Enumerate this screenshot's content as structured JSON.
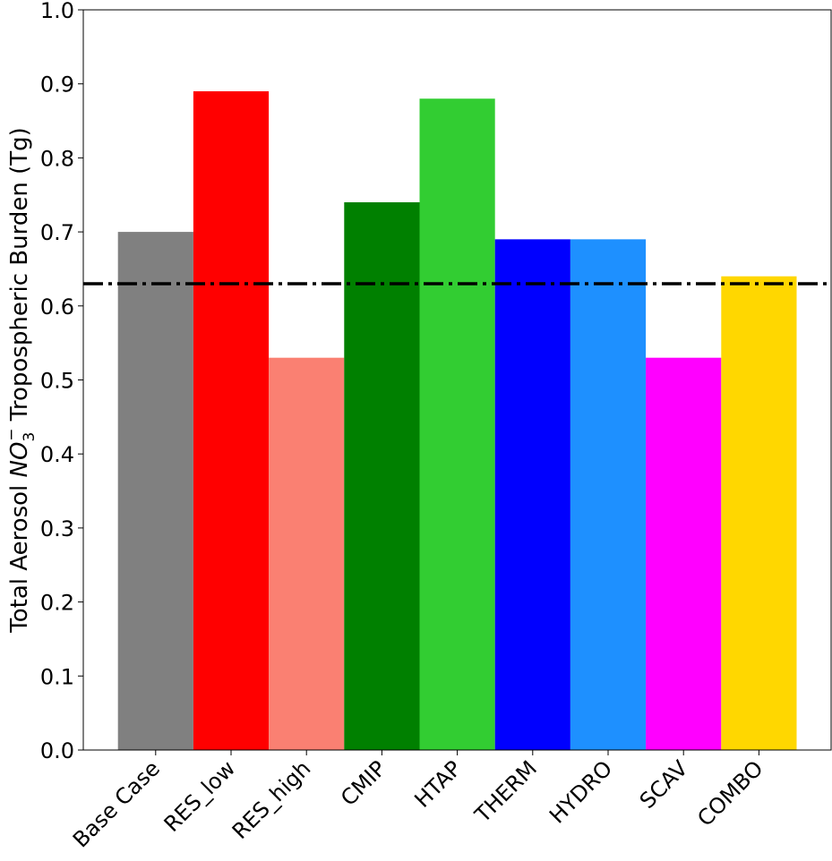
{
  "chart_data": {
    "type": "bar",
    "title": "",
    "xlabel": "",
    "ylabel_parts": {
      "before": "Total Aerosol ",
      "species": "NO",
      "subscript": "3",
      "superscript": "−",
      "after": " Tropospheric Burden (Tg)"
    },
    "categories": [
      "Base Case",
      "RES_low",
      "RES_high",
      "CMIP",
      "HTAP",
      "THERM",
      "HYDRO",
      "SCAV",
      "COMBO"
    ],
    "values": [
      0.7,
      0.89,
      0.53,
      0.74,
      0.88,
      0.69,
      0.69,
      0.53,
      0.64
    ],
    "colors": [
      "#808080",
      "#ff0000",
      "#fa8072",
      "#008000",
      "#32cd32",
      "#0000ff",
      "#1e90ff",
      "#ff00ff",
      "#ffd700"
    ],
    "ylim": [
      0.0,
      1.0
    ],
    "yticks": [
      "0.0",
      "0.1",
      "0.2",
      "0.3",
      "0.4",
      "0.5",
      "0.6",
      "0.7",
      "0.8",
      "0.9",
      "1.0"
    ],
    "reference_line": {
      "value": 0.63,
      "style": "dash-dot",
      "color": "#000000"
    },
    "grid": false,
    "legend": "none"
  }
}
